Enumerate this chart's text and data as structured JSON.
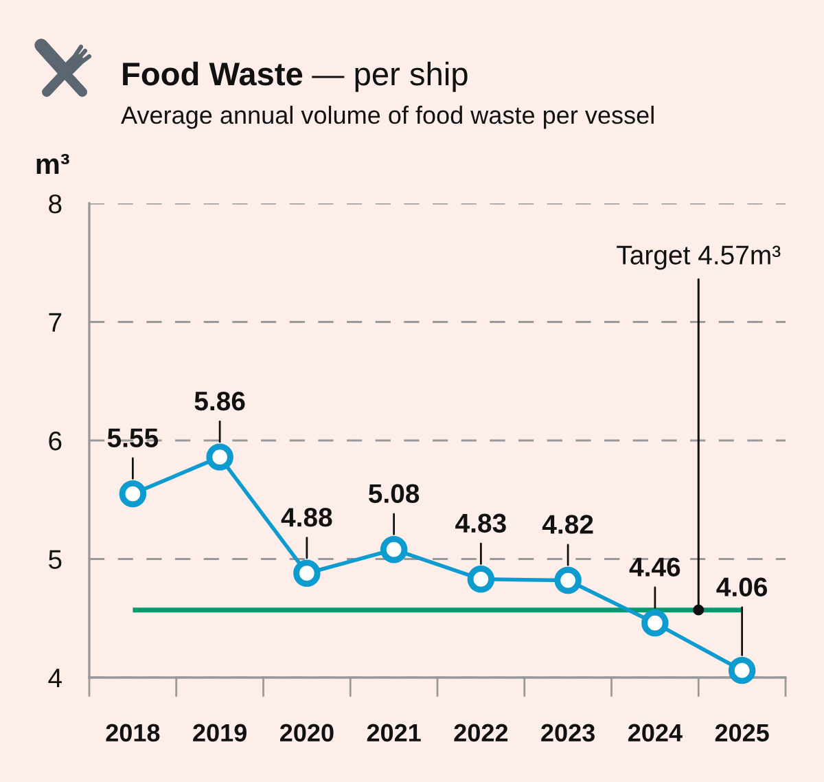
{
  "chart_data": {
    "type": "line",
    "title": "Food Waste — per ship",
    "subtitle": "Average annual volume of food waste per vessel",
    "ylabel": "m³",
    "categories": [
      "2018",
      "2019",
      "2020",
      "2021",
      "2022",
      "2023",
      "2024",
      "2025"
    ],
    "values": [
      5.55,
      5.86,
      4.88,
      5.08,
      4.83,
      4.82,
      4.46,
      4.06
    ],
    "color": "#0e9bcf",
    "ylim": [
      4,
      8
    ],
    "yticks": [
      4,
      5,
      6,
      7,
      8
    ],
    "grid": "y",
    "marker": "circle",
    "line_style": "solid",
    "data_labels": true,
    "ref_lines": [
      {
        "axis": "y",
        "value": 4.57,
        "label": "Target 4.57m³",
        "color": "#009a6e"
      }
    ]
  }
}
